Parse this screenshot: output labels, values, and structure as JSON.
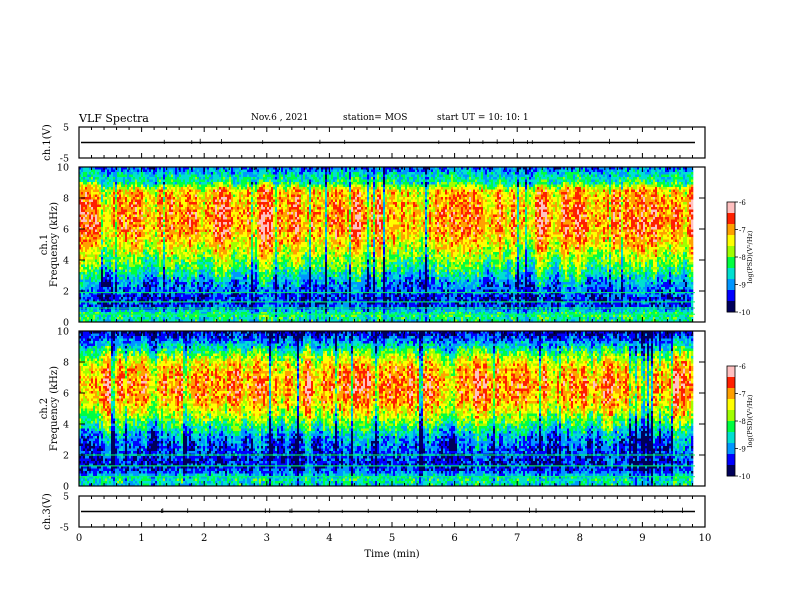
{
  "header": {
    "title": "VLF Spectra",
    "date": "Nov.6 , 2021",
    "station": "station= MOS",
    "start_ut": "start UT = 10: 10: 1"
  },
  "colors": {
    "scale": [
      "#00005a",
      "#0000ff",
      "#0096ff",
      "#00e0d0",
      "#00ff40",
      "#a0ff00",
      "#ffff00",
      "#ffa000",
      "#ff2000",
      "#ffc0c0"
    ],
    "line": "#000000"
  },
  "chart_data": [
    {
      "type": "line",
      "panel": "ch1-waveform",
      "ylabel": "ch.1(V)",
      "ylim": [
        -5,
        5
      ],
      "yticks": [
        "5",
        "-5"
      ],
      "xlim": [
        0,
        10
      ],
      "series": [
        {
          "values": [
            0,
            0
          ]
        }
      ]
    },
    {
      "type": "heatmap",
      "panel": "ch1-spectrogram",
      "ylabel": "ch.1",
      "ylabel2": "Frequency (kHz)",
      "ylim": [
        0,
        10
      ],
      "yticks": [
        "0",
        "2",
        "4",
        "6",
        "8",
        "10"
      ],
      "xlim": [
        0,
        10
      ],
      "colorbar": {
        "label": "log(PSD)(V²/Hz)",
        "range": [
          -10,
          -6
        ],
        "ticks": [
          "-6",
          "-7",
          "-8",
          "-9",
          "-10"
        ]
      },
      "profile_freq_khz": [
        0,
        0.5,
        1,
        1.5,
        2,
        2.5,
        3,
        3.5,
        4,
        4.5,
        5,
        5.5,
        6,
        6.5,
        7,
        7.5,
        8,
        8.5,
        9,
        9.5,
        10
      ],
      "profile_log_psd": [
        -8.5,
        -8.3,
        -9.3,
        -9.4,
        -9.2,
        -9.0,
        -8.6,
        -8.2,
        -7.9,
        -7.6,
        -7.3,
        -7.1,
        -6.9,
        -6.9,
        -6.9,
        -7.0,
        -7.1,
        -7.2,
        -8.4,
        -8.6,
        -9.2
      ],
      "lines_khz": [
        0.5,
        0.9,
        1.3,
        1.9
      ]
    },
    {
      "type": "heatmap",
      "panel": "ch2-spectrogram",
      "ylabel": "ch.2",
      "ylabel2": "Frequency (kHz)",
      "ylim": [
        0,
        10
      ],
      "yticks": [
        "0",
        "2",
        "4",
        "6",
        "8",
        "10"
      ],
      "xlim": [
        0,
        10
      ],
      "colorbar": {
        "label": "log(PSD)(V²/Hz)",
        "range": [
          -10,
          -6
        ],
        "ticks": [
          "-6",
          "-7",
          "-8",
          "-9",
          "-10"
        ]
      },
      "profile_freq_khz": [
        0,
        0.5,
        1,
        1.5,
        2,
        2.5,
        3,
        3.5,
        4,
        4.5,
        5,
        5.5,
        6,
        6.5,
        7,
        7.5,
        8,
        8.5,
        9,
        9.5,
        10
      ],
      "profile_log_psd": [
        -8.6,
        -8.4,
        -9.3,
        -9.4,
        -9.3,
        -9.2,
        -9.0,
        -8.6,
        -8.1,
        -7.7,
        -7.3,
        -7.0,
        -6.9,
        -6.8,
        -6.9,
        -7.1,
        -7.4,
        -7.9,
        -8.6,
        -9.2,
        -9.6
      ],
      "lines_khz": [
        0.6,
        1.3,
        2.0
      ]
    },
    {
      "type": "line",
      "panel": "ch3-waveform",
      "ylabel": "ch.3(V)",
      "ylim": [
        -5,
        5
      ],
      "yticks": [
        "5",
        "-5"
      ],
      "xlim": [
        0,
        10
      ],
      "xlabel": "Time (min)",
      "xticks": [
        "0",
        "1",
        "2",
        "3",
        "4",
        "5",
        "6",
        "7",
        "8",
        "9",
        "10"
      ],
      "series": [
        {
          "values": [
            0,
            0
          ]
        }
      ]
    }
  ]
}
